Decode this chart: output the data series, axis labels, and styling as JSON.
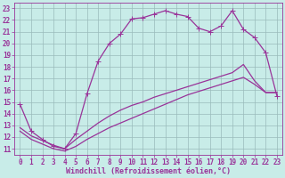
{
  "background_color": "#c8ece8",
  "line_color": "#993399",
  "grid_color": "#99bbbb",
  "xlim": [
    -0.5,
    23.5
  ],
  "ylim": [
    10.5,
    23.5
  ],
  "xticks": [
    0,
    1,
    2,
    3,
    4,
    5,
    6,
    7,
    8,
    9,
    10,
    11,
    12,
    13,
    14,
    15,
    16,
    17,
    18,
    19,
    20,
    21,
    22,
    23
  ],
  "yticks": [
    11,
    12,
    13,
    14,
    15,
    16,
    17,
    18,
    19,
    20,
    21,
    22,
    23
  ],
  "line1_x": [
    0,
    1,
    2,
    3,
    4,
    5,
    6,
    7,
    8,
    9,
    10,
    11,
    12,
    13,
    14,
    15,
    16,
    17,
    18,
    19,
    20,
    21,
    22,
    23
  ],
  "line1_y": [
    14.8,
    12.5,
    11.8,
    11.2,
    11.0,
    12.3,
    15.7,
    18.5,
    20.0,
    20.8,
    22.1,
    22.2,
    22.5,
    22.8,
    22.5,
    22.3,
    21.3,
    21.0,
    21.5,
    22.8,
    21.2,
    20.5,
    19.2,
    15.5
  ],
  "line2_x": [
    0,
    1,
    2,
    3,
    4,
    5,
    6,
    7,
    8,
    9,
    10,
    11,
    12,
    13,
    14,
    15,
    16,
    17,
    18,
    19,
    20,
    21,
    22,
    23
  ],
  "line2_y": [
    12.8,
    12.1,
    11.7,
    11.3,
    11.0,
    11.8,
    12.5,
    13.2,
    13.8,
    14.3,
    14.7,
    15.0,
    15.4,
    15.7,
    16.0,
    16.3,
    16.6,
    16.9,
    17.2,
    17.5,
    18.2,
    16.8,
    15.8,
    15.8
  ],
  "line3_x": [
    0,
    1,
    2,
    3,
    4,
    5,
    6,
    7,
    8,
    9,
    10,
    11,
    12,
    13,
    14,
    15,
    16,
    17,
    18,
    19,
    20,
    21,
    22,
    23
  ],
  "line3_y": [
    12.5,
    11.8,
    11.4,
    11.0,
    10.8,
    11.2,
    11.8,
    12.3,
    12.8,
    13.2,
    13.6,
    14.0,
    14.4,
    14.8,
    15.2,
    15.6,
    15.9,
    16.2,
    16.5,
    16.8,
    17.1,
    16.5,
    15.8,
    15.8
  ],
  "xlabel": "Windchill (Refroidissement éolien,°C)",
  "xlabel_fontsize": 6.0,
  "tick_fontsize": 5.5,
  "linewidth": 0.9,
  "markersize": 2.5
}
